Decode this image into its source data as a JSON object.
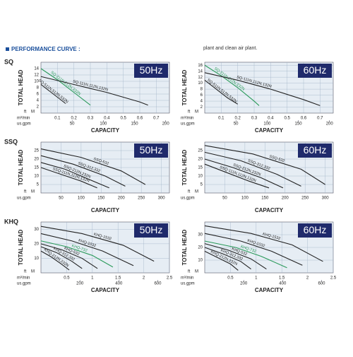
{
  "header": {
    "title": "PERFORMANCE CURVE :",
    "note": "plant and clean air plant."
  },
  "chart_data": [
    {
      "type": "line",
      "group": "SQ",
      "title": "50Hz",
      "ylabel": "TOTAL HEAD",
      "xlabel": "CAPACITY",
      "y_unit_ft": "ft",
      "y_unit_m": "M",
      "x_unit": "m³/min",
      "x2_unit": "us.gpm",
      "xlim": [
        0,
        0.78
      ],
      "xticks": [
        0.1,
        0.2,
        0.3,
        0.4,
        0.5,
        0.6,
        0.7
      ],
      "x2lim": [
        0,
        206
      ],
      "x2ticks": [
        50,
        100,
        150,
        200
      ],
      "ylim": [
        0,
        16
      ],
      "yticks": [
        2,
        4,
        6,
        8,
        10,
        12,
        14
      ],
      "grid": true,
      "series": [
        {
          "name": "SQ-211N,212N,232N",
          "color": "#2a9a5a",
          "x": [
            0,
            0.1,
            0.2,
            0.3
          ],
          "values": [
            14,
            10.5,
            6.5,
            2.5
          ]
        },
        {
          "name": "SQ-111N,112N,132N",
          "color": "#222222",
          "x": [
            0,
            0.2,
            0.4,
            0.6,
            0.65
          ],
          "values": [
            11.5,
            9,
            6.5,
            3.5,
            2.5
          ]
        },
        {
          "name": "SQ-511N,512N,532N",
          "color": "#222222",
          "x": [
            0,
            0.05,
            0.1,
            0.15
          ],
          "values": [
            9,
            7,
            5,
            3
          ]
        }
      ]
    },
    {
      "type": "line",
      "title": "60Hz",
      "ylabel": "TOTAL HEAD",
      "xlabel": "CAPACITY",
      "y_unit_ft": "ft",
      "y_unit_m": "M",
      "x_unit": "m³/min",
      "x2_unit": "us.gpm",
      "xlim": [
        0,
        0.78
      ],
      "xticks": [
        0.1,
        0.2,
        0.3,
        0.4,
        0.5,
        0.6,
        0.7
      ],
      "x2lim": [
        0,
        206
      ],
      "x2ticks": [
        50,
        100,
        150,
        200
      ],
      "ylim": [
        0,
        17
      ],
      "yticks": [
        2,
        4,
        6,
        8,
        10,
        12,
        14,
        16
      ],
      "grid": true,
      "series": [
        {
          "name": "SQ-211N,212N,232N",
          "color": "#2a9a5a",
          "x": [
            0,
            0.1,
            0.2,
            0.3,
            0.33
          ],
          "values": [
            16,
            12.5,
            8.5,
            4,
            2.5
          ]
        },
        {
          "name": "SQ-111N,112N,132N",
          "color": "#222222",
          "x": [
            0,
            0.2,
            0.4,
            0.6,
            0.7
          ],
          "values": [
            13.5,
            11,
            8,
            4.5,
            2.5
          ]
        },
        {
          "name": "SQ-511N,512N,532N",
          "color": "#222222",
          "x": [
            0,
            0.07,
            0.14,
            0.2
          ],
          "values": [
            11,
            8,
            5,
            3
          ]
        }
      ]
    },
    {
      "type": "line",
      "group": "SSQ",
      "title": "50Hz",
      "ylabel": "TOTAL HEAD",
      "xlabel": "CAPACITY",
      "y_unit_ft": "ft",
      "y_unit_m": "M",
      "x_unit": "us.gpm",
      "xlim": [
        0,
        320
      ],
      "xticks": [
        50,
        100,
        150,
        200,
        250,
        300
      ],
      "ylim": [
        0,
        30
      ],
      "yticks": [
        5,
        10,
        15,
        20,
        25
      ],
      "grid": true,
      "series": [
        {
          "name": "SSQ-532",
          "color": "#222222",
          "x": [
            0,
            100,
            200,
            260
          ],
          "values": [
            26,
            21,
            13,
            5
          ]
        },
        {
          "name": "SSQ-312,332",
          "color": "#222222",
          "x": [
            0,
            80,
            160,
            210
          ],
          "values": [
            22,
            17,
            10,
            4
          ]
        },
        {
          "name": "SSQ-212N,232N",
          "color": "#222222",
          "x": [
            0,
            60,
            120,
            170
          ],
          "values": [
            18,
            14,
            8,
            3
          ]
        },
        {
          "name": "SSQ-111N,112N,132N",
          "color": "#222222",
          "x": [
            0,
            50,
            100,
            140
          ],
          "values": [
            15,
            11,
            7,
            3
          ]
        }
      ]
    },
    {
      "type": "line",
      "title": "60Hz",
      "ylabel": "TOTAL HEAD",
      "xlabel": "CAPACITY",
      "y_unit_ft": "ft",
      "y_unit_m": "M",
      "x_unit": "us.gpm",
      "xlim": [
        0,
        320
      ],
      "xticks": [
        50,
        100,
        150,
        200,
        250,
        300
      ],
      "ylim": [
        0,
        30
      ],
      "yticks": [
        5,
        10,
        15,
        20,
        25
      ],
      "grid": true,
      "series": [
        {
          "name": "SSQ-532",
          "color": "#222222",
          "x": [
            0,
            120,
            240,
            300
          ],
          "values": [
            28,
            23,
            14,
            5
          ]
        },
        {
          "name": "SSQ-312,332",
          "color": "#222222",
          "x": [
            0,
            90,
            180,
            240
          ],
          "values": [
            24,
            19,
            11,
            4
          ]
        },
        {
          "name": "SSQ-212N,232N",
          "color": "#222222",
          "x": [
            0,
            70,
            140,
            195
          ],
          "values": [
            20,
            15,
            9,
            3
          ]
        },
        {
          "name": "SSQ-111N,112N,132N",
          "color": "#222222",
          "x": [
            0,
            55,
            110,
            160
          ],
          "values": [
            17,
            12,
            7,
            3
          ]
        }
      ]
    },
    {
      "type": "line",
      "group": "KHQ",
      "title": "50Hz",
      "ylabel": "TOTAL HEAD",
      "xlabel": "CAPACITY",
      "y_unit_ft": "ft",
      "y_unit_m": "M",
      "x_unit": "m³/min",
      "x2_unit": "us.gpm",
      "xlim": [
        0,
        2.5
      ],
      "xticks": [
        0.5,
        1,
        1.5,
        2,
        2.5
      ],
      "x2lim": [
        0,
        660
      ],
      "x2ticks": [
        200,
        400,
        600
      ],
      "ylim": [
        0,
        35
      ],
      "yticks": [
        10,
        20,
        30
      ],
      "grid": true,
      "series": [
        {
          "name": "KHQ-1532",
          "color": "#222222",
          "x": [
            0,
            0.8,
            1.6,
            2.2
          ],
          "values": [
            32,
            27,
            19,
            8
          ]
        },
        {
          "name": "KHQ-1032",
          "color": "#222222",
          "x": [
            0,
            0.6,
            1.2,
            1.8
          ],
          "values": [
            27,
            22,
            15,
            5
          ]
        },
        {
          "name": "KHQ-732",
          "color": "#2a9a5a",
          "x": [
            0,
            0.5,
            1,
            1.4
          ],
          "values": [
            22,
            18,
            12,
            4
          ]
        },
        {
          "name": "KHQ-532",
          "color": "#222222",
          "x": [
            0,
            0.4,
            0.8,
            1.1
          ],
          "values": [
            20,
            16,
            10,
            3
          ]
        },
        {
          "name": "KHQ-312,332",
          "color": "#222222",
          "x": [
            0,
            0.3,
            0.6,
            0.8
          ],
          "values": [
            18,
            14,
            8,
            3
          ]
        },
        {
          "name": "KHQ-212N,232N",
          "color": "#222222",
          "x": [
            0,
            0.2,
            0.4,
            0.55
          ],
          "values": [
            15,
            11,
            6,
            2
          ]
        }
      ]
    },
    {
      "type": "line",
      "title": "60Hz",
      "ylabel": "TOTAL HEAD",
      "xlabel": "CAPACITY",
      "y_unit_ft": "ft",
      "y_unit_m": "M",
      "x_unit": "m³/min",
      "x2_unit": "us.gpm",
      "xlim": [
        0,
        2.5
      ],
      "xticks": [
        0.5,
        1,
        1.5,
        2,
        2.5
      ],
      "x2lim": [
        0,
        660
      ],
      "x2ticks": [
        200,
        400,
        600
      ],
      "ylim": [
        0,
        40
      ],
      "yticks": [
        10,
        20,
        30
      ],
      "grid": true,
      "series": [
        {
          "name": "KHQ-1532",
          "color": "#222222",
          "x": [
            0,
            0.9,
            1.7,
            2.3
          ],
          "values": [
            37,
            31,
            22,
            9
          ]
        },
        {
          "name": "KHQ-1032",
          "color": "#222222",
          "x": [
            0,
            0.7,
            1.3,
            1.9
          ],
          "values": [
            31,
            25,
            17,
            6
          ]
        },
        {
          "name": "KHQ-732",
          "color": "#2a9a5a",
          "x": [
            0,
            0.6,
            1.1,
            1.6
          ],
          "values": [
            25,
            20,
            13,
            4
          ]
        },
        {
          "name": "KHQ-532",
          "color": "#222222",
          "x": [
            0,
            0.45,
            0.9,
            1.2
          ],
          "values": [
            23,
            18,
            11,
            3
          ]
        },
        {
          "name": "KHQ-312,332",
          "color": "#222222",
          "x": [
            0,
            0.35,
            0.7,
            0.9
          ],
          "values": [
            20,
            15,
            9,
            3
          ]
        },
        {
          "name": "KHQ-212N,232N",
          "color": "#222222",
          "x": [
            0,
            0.25,
            0.5,
            0.65
          ],
          "values": [
            17,
            12,
            7,
            2
          ]
        }
      ]
    }
  ]
}
